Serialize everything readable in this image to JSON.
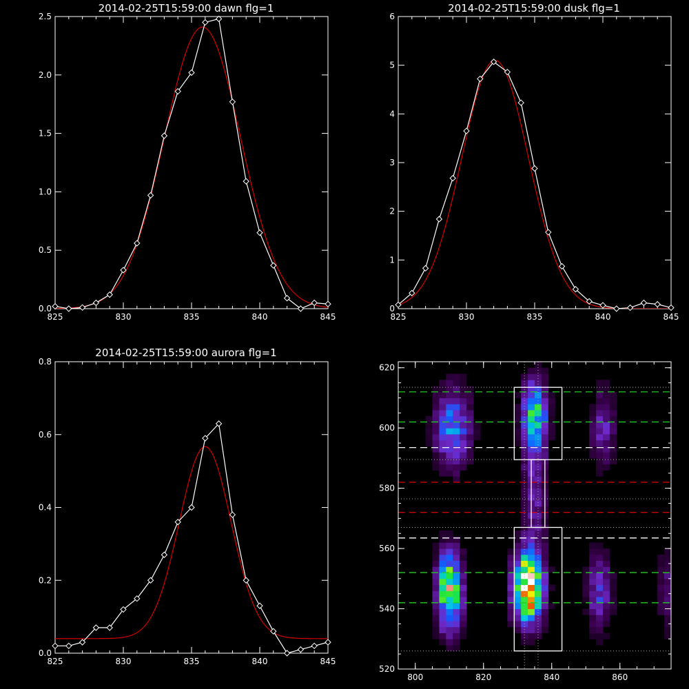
{
  "charts": {
    "dawn": {
      "type": "line",
      "title": "2014-02-25T15:59:00 dawn flg=1",
      "xlim": [
        825,
        845
      ],
      "ylim": [
        0,
        2.5
      ],
      "xticks": [
        "825",
        "830",
        "835",
        "840",
        "845"
      ],
      "yticks": [
        "0.0",
        "0.5",
        "1.0",
        "1.5",
        "2.0",
        "2.5"
      ],
      "series": [
        {
          "role": "data",
          "color": "#ffffff",
          "x": [
            825,
            826,
            827,
            828,
            829,
            830,
            831,
            832,
            833,
            834,
            835,
            836,
            837,
            838,
            839,
            840,
            841,
            842,
            843,
            844,
            845
          ],
          "y": [
            0.02,
            0.0,
            0.01,
            0.05,
            0.12,
            0.33,
            0.56,
            0.97,
            1.48,
            1.86,
            2.02,
            2.45,
            2.48,
            1.77,
            1.09,
            0.65,
            0.37,
            0.09,
            0.0,
            0.05,
            0.04
          ]
        },
        {
          "role": "fit",
          "color": "#d40000",
          "shape": "gaussian",
          "amplitude": 2.41,
          "center": 835.8,
          "sigma": 2.8,
          "offset": 0.0
        }
      ]
    },
    "dusk": {
      "type": "line",
      "title": "2014-02-25T15:59:00 dusk flg=1",
      "xlim": [
        825,
        845
      ],
      "ylim": [
        0,
        6
      ],
      "xticks": [
        "825",
        "830",
        "835",
        "840",
        "845"
      ],
      "yticks": [
        "0",
        "1",
        "2",
        "3",
        "4",
        "5",
        "6"
      ],
      "series": [
        {
          "role": "data",
          "color": "#ffffff",
          "x": [
            825,
            826,
            827,
            828,
            829,
            830,
            831,
            832,
            833,
            834,
            835,
            836,
            837,
            838,
            839,
            840,
            841,
            842,
            843,
            844,
            845
          ],
          "y": [
            0.08,
            0.32,
            0.83,
            1.84,
            2.68,
            3.65,
            4.72,
            5.07,
            4.86,
            4.23,
            2.88,
            1.57,
            0.87,
            0.4,
            0.15,
            0.07,
            0.0,
            0.02,
            0.12,
            0.09,
            0.02
          ]
        },
        {
          "role": "fit",
          "color": "#d40000",
          "shape": "gaussian",
          "amplitude": 5.1,
          "center": 832.1,
          "sigma": 2.45,
          "offset": 0.0
        }
      ]
    },
    "aurora": {
      "type": "line",
      "title": "2014-02-25T15:59:00 aurora flg=1",
      "xlim": [
        825,
        845
      ],
      "ylim": [
        0,
        0.8
      ],
      "xticks": [
        "825",
        "830",
        "835",
        "840",
        "845"
      ],
      "yticks": [
        "0.0",
        "0.2",
        "0.4",
        "0.6",
        "0.8"
      ],
      "series": [
        {
          "role": "data",
          "color": "#ffffff",
          "x": [
            825,
            826,
            827,
            828,
            829,
            830,
            831,
            832,
            833,
            834,
            835,
            836,
            837,
            838,
            839,
            840,
            841,
            842,
            843,
            844,
            845
          ],
          "y": [
            0.02,
            0.02,
            0.03,
            0.07,
            0.07,
            0.12,
            0.15,
            0.2,
            0.27,
            0.36,
            0.4,
            0.59,
            0.63,
            0.38,
            0.2,
            0.13,
            0.06,
            0.0,
            0.01,
            0.02,
            0.03
          ]
        },
        {
          "role": "fit",
          "color": "#d40000",
          "shape": "gaussian",
          "amplitude": 0.527,
          "center": 836.0,
          "sigma": 1.9,
          "offset": 0.04
        }
      ]
    },
    "image": {
      "type": "heatmap",
      "xlim": [
        795,
        875
      ],
      "ylim": [
        520,
        622
      ],
      "xticks": [
        "800",
        "820",
        "840",
        "860"
      ],
      "yticks": [
        "520",
        "540",
        "560",
        "580",
        "600",
        "620"
      ],
      "blobs": [
        {
          "x": 810,
          "y": 546,
          "sx": 2.5,
          "sy": 9,
          "amp": 0.8
        },
        {
          "x": 811,
          "y": 600,
          "sx": 3.5,
          "sy": 9,
          "amp": 0.45
        },
        {
          "x": 833,
          "y": 547,
          "sx": 3.0,
          "sy": 8,
          "amp": 1.0
        },
        {
          "x": 835,
          "y": 605,
          "sx": 2.5,
          "sy": 7,
          "amp": 0.5
        },
        {
          "x": 835,
          "y": 585,
          "sx": 2.5,
          "sy": 20,
          "amp": 0.25
        },
        {
          "x": 854,
          "y": 546,
          "sx": 2.5,
          "sy": 9,
          "amp": 0.3
        },
        {
          "x": 855,
          "y": 600,
          "sx": 2.5,
          "sy": 9,
          "amp": 0.25
        },
        {
          "x": 875,
          "y": 546,
          "sx": 3.0,
          "sy": 10,
          "amp": 0.18
        }
      ],
      "hlines": [
        {
          "y": 612,
          "color": "#22cc22",
          "style": "dashed"
        },
        {
          "y": 602,
          "color": "#22cc22",
          "style": "dashed"
        },
        {
          "y": 593.5,
          "color": "#ffffff",
          "style": "dashed"
        },
        {
          "y": 582,
          "color": "#dd0000",
          "style": "dashed"
        },
        {
          "y": 572,
          "color": "#dd0000",
          "style": "dashed"
        },
        {
          "y": 563.5,
          "color": "#ffffff",
          "style": "dashed"
        },
        {
          "y": 552,
          "color": "#22cc22",
          "style": "dashed"
        },
        {
          "y": 542,
          "color": "#22cc22",
          "style": "dashed"
        },
        {
          "y": 613.5,
          "color": "#aaaaaa",
          "style": "dotted"
        },
        {
          "y": 589.5,
          "color": "#aaaaaa",
          "style": "dotted"
        },
        {
          "y": 576.5,
          "color": "#aaaaaa",
          "style": "dotted"
        },
        {
          "y": 567,
          "color": "#aaaaaa",
          "style": "dotted"
        },
        {
          "y": 526,
          "color": "#aaaaaa",
          "style": "dotted"
        }
      ],
      "vlines": [
        {
          "x": 832,
          "color": "#aaaaaa",
          "style": "dotted"
        },
        {
          "x": 836,
          "color": "#aaaaaa",
          "style": "dotted"
        }
      ],
      "boxes": [
        {
          "x0": 829,
          "x1": 843,
          "y0": 589.5,
          "y1": 613.5
        },
        {
          "x0": 834,
          "x1": 838,
          "y0": 567,
          "y1": 589.5
        },
        {
          "x0": 829,
          "x1": 843,
          "y0": 526,
          "y1": 567
        }
      ]
    }
  }
}
